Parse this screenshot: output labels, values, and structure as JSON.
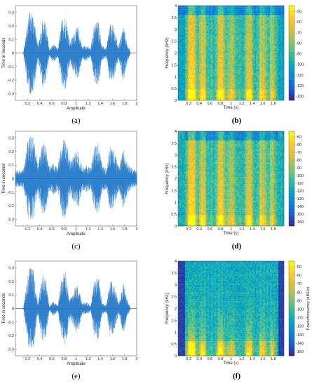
{
  "chart_data": [
    {
      "type": "line",
      "panel": "(a)",
      "xlabel": "Amplitude",
      "ylabel": "Time in seconds",
      "xlim": [
        0,
        2
      ],
      "ylim": [
        -0.35,
        0.35
      ],
      "xticks": [
        "0.2",
        "0.4",
        "0.6",
        "0.8",
        "1",
        "1.2",
        "1.4",
        "1.6",
        "1.8",
        "2"
      ],
      "yticks": [
        "-0.3",
        "-0.2",
        "-0.1",
        "0",
        "0.1",
        "0.2",
        "0.3"
      ],
      "envelope": {
        "t": [
          0.13,
          0.22,
          0.3,
          0.37,
          0.45,
          0.5,
          0.56,
          0.63,
          0.7,
          0.77,
          0.83,
          0.9,
          0.97,
          1.03,
          1.1,
          1.17,
          1.24,
          1.3,
          1.37,
          1.43,
          1.5,
          1.56,
          1.62,
          1.7,
          1.78,
          1.84,
          1.9
        ],
        "a": [
          0.0,
          0.31,
          0.3,
          0.05,
          0.26,
          0.22,
          0.03,
          0.07,
          0.03,
          0.26,
          0.28,
          0.08,
          0.16,
          0.2,
          0.05,
          0.06,
          0.03,
          0.22,
          0.25,
          0.05,
          0.04,
          0.22,
          0.2,
          0.05,
          0.21,
          0.08,
          0.0
        ]
      },
      "color": "#1f77c8"
    },
    {
      "type": "heatmap",
      "panel": "(b)",
      "xlabel": "Time (s)",
      "ylabel": "Frequency (kHz)",
      "xlim": [
        0,
        2
      ],
      "ylim": [
        0,
        4
      ],
      "xticks": [
        "0.2",
        "0.4",
        "0.6",
        "0.8",
        "1",
        "1.2",
        "1.4",
        "1.6",
        "1.8"
      ],
      "yticks": [
        "0",
        "0.5",
        "1",
        "1.5",
        "2",
        "2.5",
        "3",
        "3.5",
        "4"
      ],
      "colorbar_ticks": [
        "-50",
        "-60",
        "-70",
        "-80",
        "-90",
        "-100",
        "-110",
        "-120",
        "-130"
      ],
      "colorbar_label": ""
    },
    {
      "type": "line",
      "panel": "(c)",
      "xlabel": "Amplitude",
      "ylabel": "Time in seconds",
      "xlim": [
        0,
        2
      ],
      "ylim": [
        -0.35,
        0.35
      ],
      "xticks": [
        "0.2",
        "0.4",
        "0.6",
        "0.8",
        "1",
        "1.2",
        "1.4",
        "1.6",
        "1.8",
        "2"
      ],
      "yticks": [
        "-0.3",
        "-0.2",
        "-0.1",
        "0",
        "0.1",
        "0.2",
        "0.3"
      ],
      "envelope": {
        "t": [
          0.0,
          0.13,
          0.22,
          0.3,
          0.37,
          0.45,
          0.5,
          0.56,
          0.63,
          0.7,
          0.77,
          0.83,
          0.9,
          0.97,
          1.03,
          1.1,
          1.17,
          1.24,
          1.3,
          1.37,
          1.43,
          1.5,
          1.56,
          1.62,
          1.7,
          1.78,
          1.84,
          1.9,
          2.0
        ],
        "a": [
          0.06,
          0.07,
          0.33,
          0.3,
          0.1,
          0.28,
          0.24,
          0.09,
          0.12,
          0.09,
          0.28,
          0.3,
          0.12,
          0.18,
          0.22,
          0.09,
          0.1,
          0.08,
          0.24,
          0.27,
          0.09,
          0.08,
          0.24,
          0.22,
          0.09,
          0.23,
          0.12,
          0.08,
          0.06
        ]
      },
      "color": "#1f77c8"
    },
    {
      "type": "heatmap",
      "panel": "(d)",
      "xlabel": "Time (s)",
      "ylabel": "Frequency (kHz)",
      "xlim": [
        0,
        2
      ],
      "ylim": [
        0,
        4
      ],
      "xticks": [
        "0.2",
        "0.4",
        "0.6",
        "0.8",
        "1",
        "1.2",
        "1.4",
        "1.6",
        "1.8"
      ],
      "yticks": [
        "0",
        "0.5",
        "1",
        "1.5",
        "2",
        "2.5",
        "3",
        "3.5",
        "4"
      ],
      "colorbar_ticks": [
        "-50",
        "-60",
        "-70",
        "-80",
        "-90",
        "-100",
        "-110",
        "-120",
        "-130",
        "-140",
        "-150",
        "-160"
      ],
      "colorbar_label": ""
    },
    {
      "type": "line",
      "panel": "(e)",
      "xlabel": "Amplitude",
      "ylabel": "Time in seconds",
      "xlim": [
        0,
        2
      ],
      "ylim": [
        -0.35,
        0.35
      ],
      "xticks": [
        "0.2",
        "0.4",
        "0.6",
        "0.8",
        "1",
        "1.2",
        "1.4",
        "1.6",
        "1.8",
        "2"
      ],
      "yticks": [
        "-0.3",
        "-0.2",
        "-0.1",
        "0",
        "0.1",
        "0.2",
        "0.3"
      ],
      "envelope": {
        "t": [
          0.13,
          0.22,
          0.3,
          0.37,
          0.45,
          0.5,
          0.56,
          0.63,
          0.7,
          0.77,
          0.83,
          0.9,
          0.97,
          1.03,
          1.1,
          1.17,
          1.24,
          1.3,
          1.37,
          1.43,
          1.5,
          1.56,
          1.62,
          1.7,
          1.78,
          1.84,
          1.9
        ],
        "a": [
          0.0,
          0.31,
          0.29,
          0.04,
          0.26,
          0.21,
          0.02,
          0.06,
          0.02,
          0.25,
          0.27,
          0.07,
          0.15,
          0.19,
          0.04,
          0.05,
          0.02,
          0.21,
          0.24,
          0.04,
          0.03,
          0.21,
          0.19,
          0.04,
          0.2,
          0.07,
          0.0
        ]
      },
      "color": "#1f77c8"
    },
    {
      "type": "heatmap",
      "panel": "(f)",
      "xlabel": "Time (s)",
      "ylabel": "Frequency (kHz)",
      "xlim": [
        0,
        2
      ],
      "ylim": [
        0,
        4
      ],
      "xticks": [
        "0.2",
        "0.4",
        "0.6",
        "0.8",
        "1",
        "1.2",
        "1.4",
        "1.6",
        "1.8"
      ],
      "yticks": [
        "0",
        "0.5",
        "1",
        "1.5",
        "2",
        "2.5",
        "3",
        "3.5",
        "4"
      ],
      "colorbar_ticks": [
        "-50",
        "-60",
        "-70",
        "-80",
        "-90",
        "-100",
        "-110",
        "-120",
        "-130",
        "-140",
        "-150"
      ],
      "colorbar_label": "Power/frequency (dB/Hz)"
    }
  ]
}
